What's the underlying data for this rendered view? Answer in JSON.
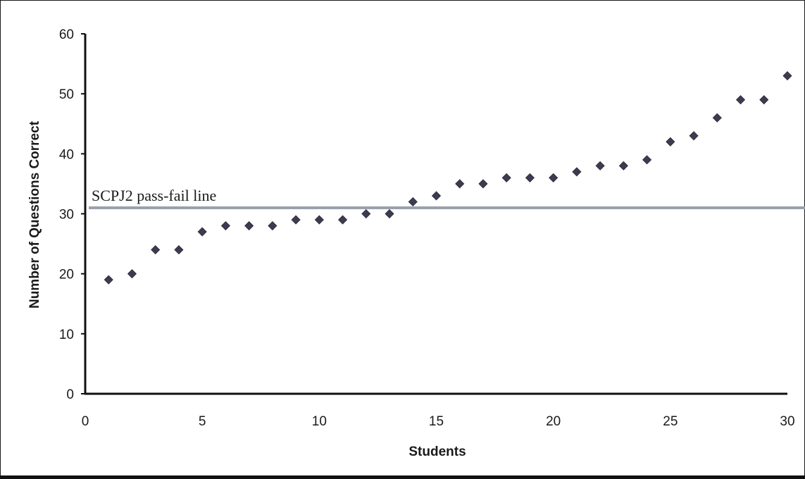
{
  "chart_data": {
    "type": "scatter",
    "title": "",
    "xlabel": "Students",
    "ylabel": "Number of Questions Correct",
    "xlim": [
      0,
      30
    ],
    "ylim": [
      0,
      60
    ],
    "x_ticks": [
      0,
      5,
      10,
      15,
      20,
      25,
      30
    ],
    "y_ticks": [
      0,
      10,
      20,
      30,
      40,
      50,
      60
    ],
    "grid": false,
    "marker": "diamond",
    "marker_color": "#3c3c50",
    "series": [
      {
        "x": [
          1,
          2,
          3,
          4,
          5,
          6,
          7,
          8,
          9,
          10,
          11,
          12,
          13,
          14,
          15,
          16,
          17,
          18,
          19,
          20,
          21,
          22,
          23,
          24,
          25,
          26,
          27,
          28,
          29,
          30
        ],
        "values": [
          19,
          20,
          24,
          24,
          27,
          28,
          28,
          28,
          29,
          29,
          29,
          30,
          30,
          32,
          33,
          35,
          35,
          36,
          36,
          36,
          37,
          38,
          38,
          39,
          42,
          43,
          46,
          49,
          49,
          53
        ]
      }
    ],
    "reference_line": {
      "label": "SCPJ2 pass-fail line",
      "y": 31,
      "color": "#9aa0ac"
    }
  }
}
